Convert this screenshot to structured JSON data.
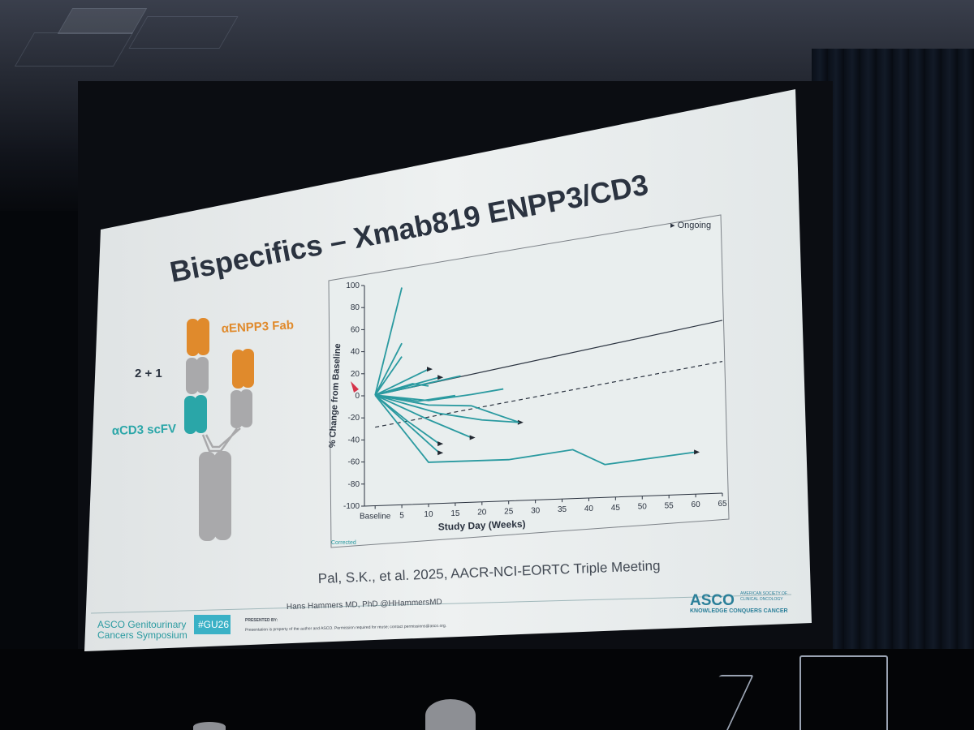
{
  "slide": {
    "title": "Bispecifics – Xmab819 ENPP3/CD3",
    "antibody_diagram": {
      "label_valency": "2 + 1",
      "label_fab": "αENPP3 Fab",
      "label_scfv": "αCD3 scFV",
      "colors": {
        "fab": "#e08a2c",
        "scfv": "#2aa6a8",
        "constant": "#a9a9ab"
      }
    },
    "citation": "Pal, S.K., et al. 2025, AACR-NCI-EORTC Triple Meeting",
    "presenter": "Hans Hammers MD, PhD @HHammersMD",
    "hashtag": "#GU26",
    "presented_by": "PRESENTED BY:",
    "disclaimer": "Presentation is property of the author and ASCO. Permission required for reuse; contact permissions@asco.org.",
    "symposium_line1": "ASCO Genitourinary",
    "symposium_line2": "Cancers Symposium",
    "asco_logo": "ASCO",
    "asco_full_name_1": "AMERICAN SOCIETY OF",
    "asco_full_name_2": "CLINICAL ONCOLOGY",
    "asco_tagline": "KNOWLEDGE CONQUERS CANCER",
    "brand_color": "#2aa6a8"
  },
  "chart_data": {
    "type": "line",
    "ylabel": "% Change from Baseline",
    "xlabel": "Study Day (Weeks)",
    "x_tick_labels": [
      "Baseline",
      "5",
      "10",
      "15",
      "20",
      "25",
      "30",
      "35",
      "40",
      "45",
      "50",
      "55",
      "60",
      "65"
    ],
    "x_ticks": [
      0,
      5,
      10,
      15,
      20,
      25,
      30,
      35,
      40,
      45,
      50,
      55,
      60,
      65
    ],
    "y_ticks": [
      100,
      80,
      60,
      40,
      20,
      0,
      -20,
      -40,
      -60,
      -80,
      -100
    ],
    "xlim": [
      -2,
      65
    ],
    "ylim": [
      -100,
      100
    ],
    "reference_lines": [
      {
        "style": "solid",
        "x": [
          0,
          65
        ],
        "y": [
          0,
          43
        ]
      },
      {
        "style": "dashed",
        "x": [
          0,
          65
        ],
        "y": [
          -29,
          9
        ]
      }
    ],
    "legend": "▸ Ongoing",
    "footnote": "Corrected",
    "line_color": "#2a9aa0",
    "series": [
      {
        "x": [
          0,
          5
        ],
        "y": [
          0,
          95
        ],
        "ongoing": false
      },
      {
        "x": [
          0,
          5
        ],
        "y": [
          0,
          45
        ],
        "ongoing": false
      },
      {
        "x": [
          0,
          5
        ],
        "y": [
          0,
          33
        ],
        "ongoing": false
      },
      {
        "x": [
          0,
          10
        ],
        "y": [
          0,
          20
        ],
        "ongoing": true
      },
      {
        "x": [
          0,
          12
        ],
        "y": [
          0,
          12
        ],
        "ongoing": true
      },
      {
        "x": [
          0,
          16
        ],
        "y": [
          0,
          12
        ],
        "ongoing": false
      },
      {
        "x": [
          0,
          7,
          10
        ],
        "y": [
          0,
          8,
          5
        ],
        "ongoing": false
      },
      {
        "x": [
          0,
          8,
          15
        ],
        "y": [
          0,
          -8,
          -5
        ],
        "ongoing": false
      },
      {
        "x": [
          0,
          10,
          18,
          24
        ],
        "y": [
          0,
          -8,
          -5,
          -2
        ],
        "ongoing": false
      },
      {
        "x": [
          0,
          10,
          18,
          27
        ],
        "y": [
          0,
          -12,
          -15,
          -32
        ],
        "ongoing": true
      },
      {
        "x": [
          0,
          12,
          20,
          27
        ],
        "y": [
          0,
          -20,
          -28,
          -32
        ],
        "ongoing": false
      },
      {
        "x": [
          0,
          6,
          12
        ],
        "y": [
          0,
          -25,
          -47
        ],
        "ongoing": true
      },
      {
        "x": [
          0,
          10,
          18
        ],
        "y": [
          0,
          -25,
          -43
        ],
        "ongoing": true
      },
      {
        "x": [
          0,
          12
        ],
        "y": [
          0,
          -55
        ],
        "ongoing": true
      },
      {
        "x": [
          0,
          10,
          25,
          37,
          43,
          60
        ],
        "y": [
          0,
          -63,
          -64,
          -58,
          -72,
          -65
        ],
        "ongoing": true
      }
    ]
  }
}
